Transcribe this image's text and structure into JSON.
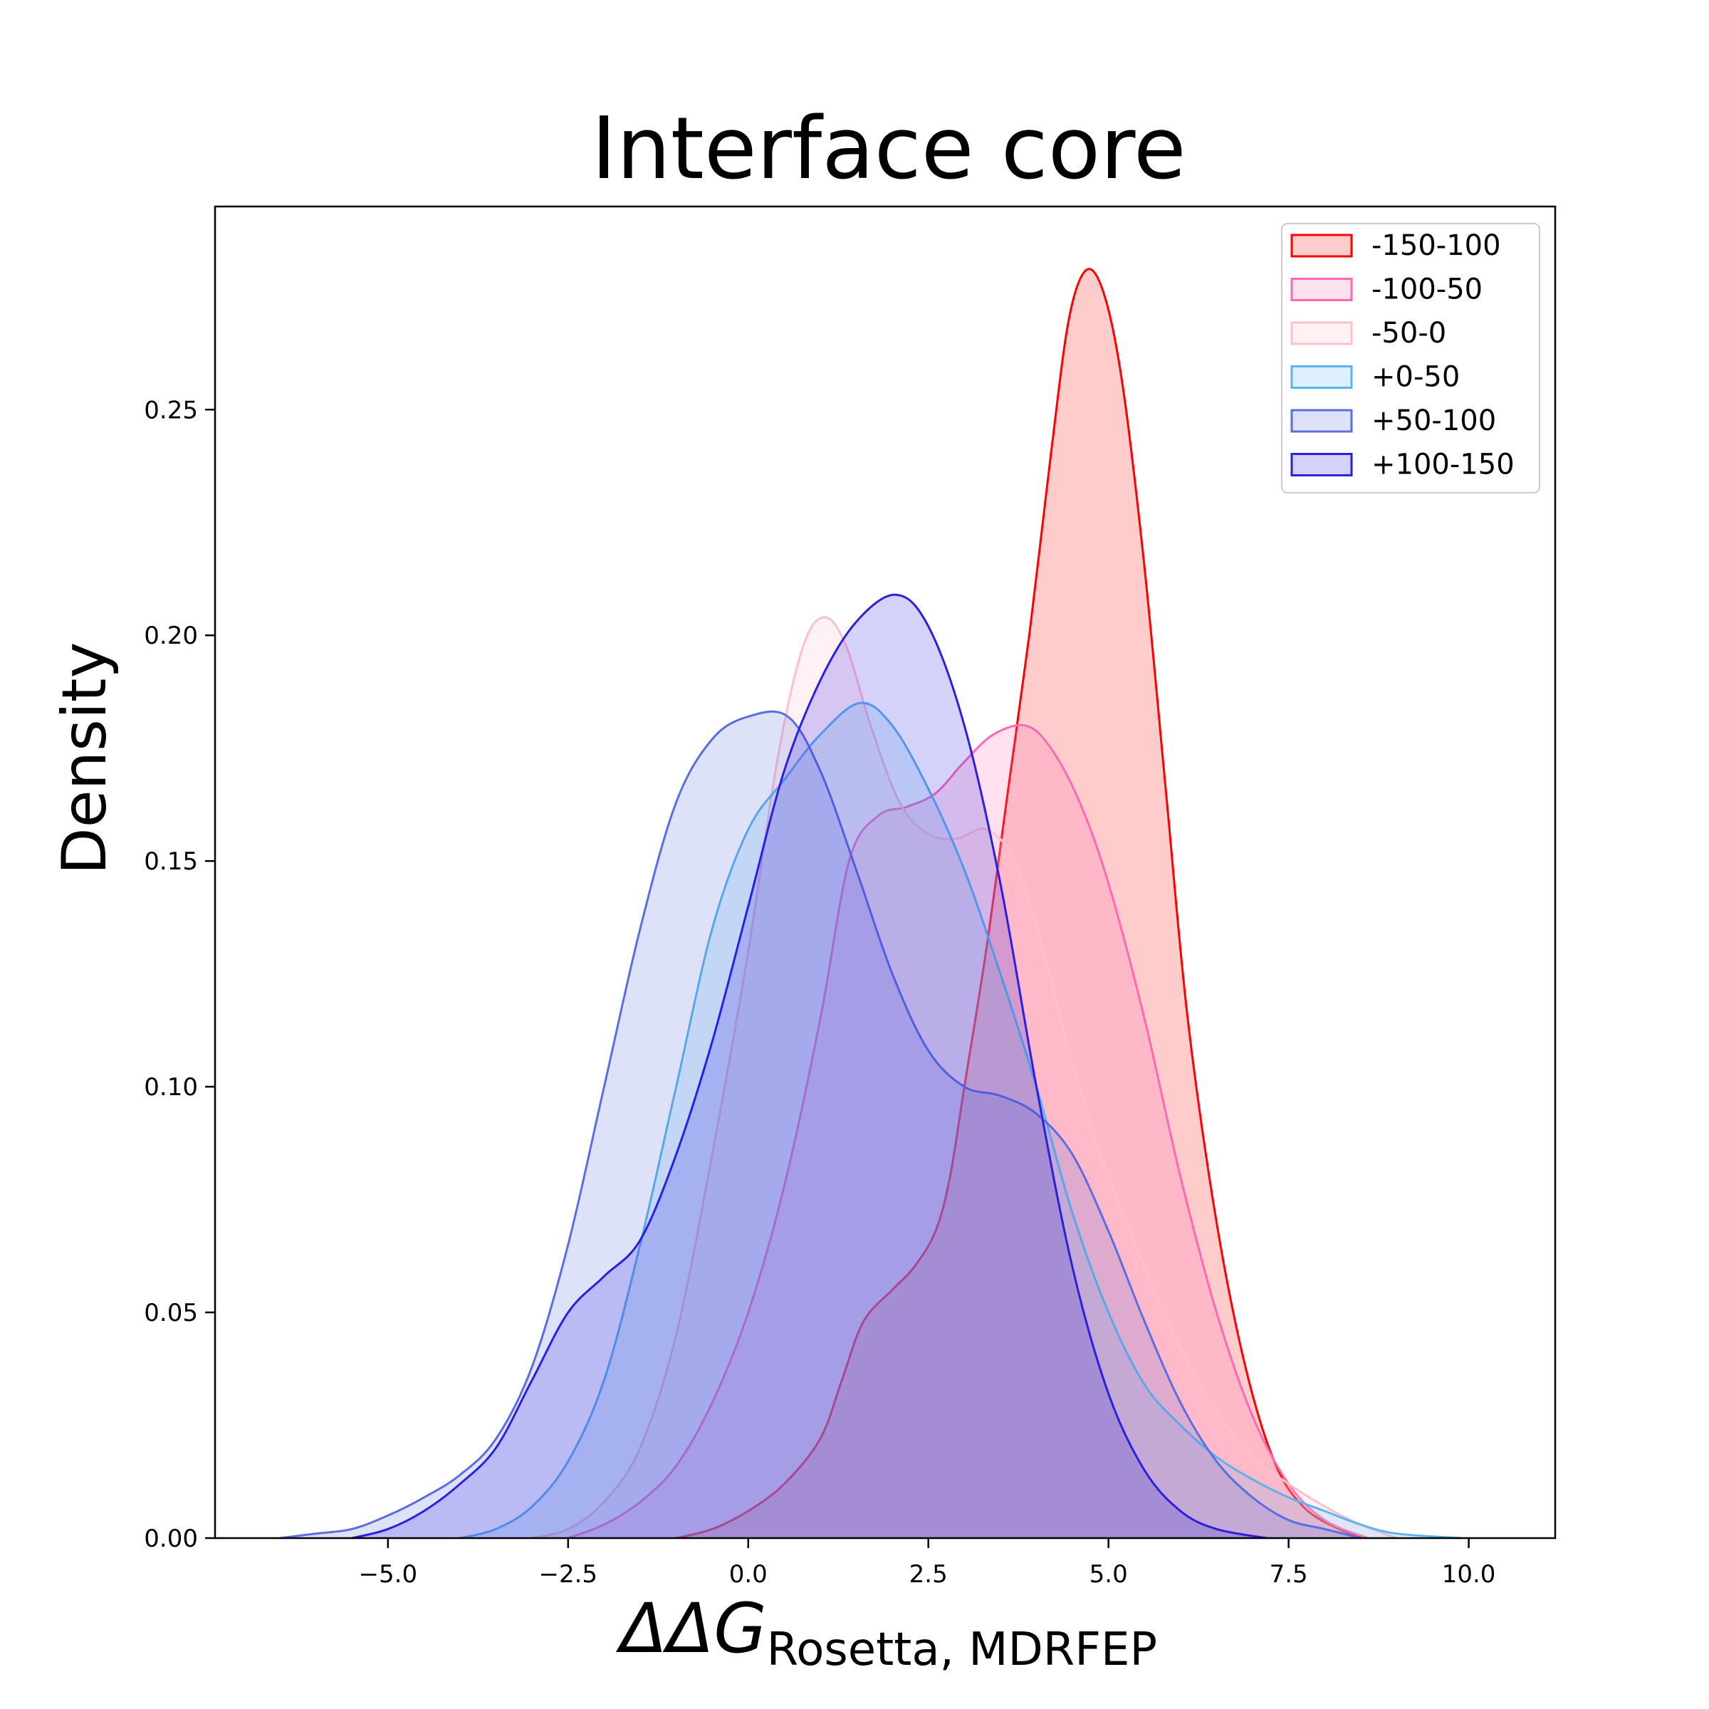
{
  "chart_data": {
    "type": "area",
    "title": "Interface core",
    "ylabel": "Density",
    "xlabel": {
      "main": "ΔΔG",
      "subscript": "Rosetta, MDRFEP"
    },
    "xlim": [
      -7.4,
      11.2
    ],
    "ylim": [
      0,
      0.295
    ],
    "x_ticks": [
      -5.0,
      -2.5,
      0.0,
      2.5,
      5.0,
      7.5,
      10.0
    ],
    "x_tick_labels": [
      "−5.0",
      "−2.5",
      "0.0",
      "2.5",
      "5.0",
      "7.5",
      "10.0"
    ],
    "y_ticks": [
      0.0,
      0.05,
      0.1,
      0.15,
      0.2,
      0.25
    ],
    "y_tick_labels": [
      "0.00",
      "0.05",
      "0.10",
      "0.15",
      "0.20",
      "0.25"
    ],
    "grid": false,
    "legend_position": "top-right",
    "series": [
      {
        "name": "-150-100",
        "color": "#ff0000",
        "fill_opacity": 0.2,
        "points": [
          [
            -1.0,
            0.0
          ],
          [
            -0.5,
            0.002
          ],
          [
            0.0,
            0.006
          ],
          [
            0.5,
            0.012
          ],
          [
            1.0,
            0.022
          ],
          [
            1.3,
            0.035
          ],
          [
            1.6,
            0.048
          ],
          [
            2.0,
            0.055
          ],
          [
            2.3,
            0.06
          ],
          [
            2.6,
            0.068
          ],
          [
            2.8,
            0.08
          ],
          [
            3.0,
            0.1
          ],
          [
            3.3,
            0.13
          ],
          [
            3.6,
            0.165
          ],
          [
            3.9,
            0.2
          ],
          [
            4.2,
            0.24
          ],
          [
            4.45,
            0.27
          ],
          [
            4.7,
            0.281
          ],
          [
            4.95,
            0.275
          ],
          [
            5.2,
            0.255
          ],
          [
            5.5,
            0.215
          ],
          [
            5.8,
            0.165
          ],
          [
            6.1,
            0.115
          ],
          [
            6.5,
            0.07
          ],
          [
            6.9,
            0.038
          ],
          [
            7.3,
            0.017
          ],
          [
            7.7,
            0.007
          ],
          [
            8.2,
            0.002
          ],
          [
            8.6,
            0.0
          ]
        ]
      },
      {
        "name": "-100-50",
        "color": "#ff69b4",
        "fill_opacity": 0.2,
        "points": [
          [
            -2.5,
            0.0
          ],
          [
            -2.0,
            0.003
          ],
          [
            -1.5,
            0.008
          ],
          [
            -1.0,
            0.016
          ],
          [
            -0.5,
            0.03
          ],
          [
            0.0,
            0.05
          ],
          [
            0.5,
            0.078
          ],
          [
            1.0,
            0.115
          ],
          [
            1.4,
            0.15
          ],
          [
            1.8,
            0.16
          ],
          [
            2.2,
            0.162
          ],
          [
            2.6,
            0.165
          ],
          [
            3.0,
            0.172
          ],
          [
            3.4,
            0.178
          ],
          [
            3.85,
            0.18
          ],
          [
            4.2,
            0.175
          ],
          [
            4.6,
            0.163
          ],
          [
            5.0,
            0.145
          ],
          [
            5.5,
            0.115
          ],
          [
            6.0,
            0.08
          ],
          [
            6.5,
            0.05
          ],
          [
            7.0,
            0.027
          ],
          [
            7.5,
            0.012
          ],
          [
            8.0,
            0.004
          ],
          [
            8.6,
            0.0
          ]
        ]
      },
      {
        "name": "-50-0",
        "color": "#ffc0cb",
        "fill_opacity": 0.2,
        "points": [
          [
            -3.0,
            0.0
          ],
          [
            -2.5,
            0.002
          ],
          [
            -2.0,
            0.008
          ],
          [
            -1.5,
            0.02
          ],
          [
            -1.0,
            0.045
          ],
          [
            -0.5,
            0.085
          ],
          [
            0.0,
            0.13
          ],
          [
            0.4,
            0.172
          ],
          [
            0.75,
            0.197
          ],
          [
            1.05,
            0.204
          ],
          [
            1.35,
            0.198
          ],
          [
            1.7,
            0.18
          ],
          [
            2.1,
            0.163
          ],
          [
            2.5,
            0.156
          ],
          [
            2.9,
            0.155
          ],
          [
            3.3,
            0.157
          ],
          [
            3.7,
            0.15
          ],
          [
            4.1,
            0.13
          ],
          [
            4.5,
            0.105
          ],
          [
            5.0,
            0.08
          ],
          [
            5.5,
            0.06
          ],
          [
            6.0,
            0.042
          ],
          [
            6.5,
            0.028
          ],
          [
            7.0,
            0.018
          ],
          [
            7.5,
            0.012
          ],
          [
            8.0,
            0.007
          ],
          [
            8.5,
            0.003
          ],
          [
            9.0,
            0.0
          ]
        ]
      },
      {
        "name": "+0-50",
        "color": "#5ab4ef",
        "fill_opacity": 0.2,
        "points": [
          [
            -4.0,
            0.0
          ],
          [
            -3.5,
            0.002
          ],
          [
            -3.0,
            0.007
          ],
          [
            -2.5,
            0.017
          ],
          [
            -2.0,
            0.035
          ],
          [
            -1.5,
            0.065
          ],
          [
            -1.0,
            0.1
          ],
          [
            -0.5,
            0.135
          ],
          [
            0.0,
            0.157
          ],
          [
            0.5,
            0.168
          ],
          [
            1.0,
            0.178
          ],
          [
            1.55,
            0.185
          ],
          [
            2.0,
            0.18
          ],
          [
            2.5,
            0.166
          ],
          [
            3.0,
            0.148
          ],
          [
            3.5,
            0.125
          ],
          [
            4.0,
            0.1
          ],
          [
            4.5,
            0.072
          ],
          [
            5.0,
            0.05
          ],
          [
            5.5,
            0.034
          ],
          [
            6.0,
            0.025
          ],
          [
            6.5,
            0.018
          ],
          [
            7.0,
            0.013
          ],
          [
            7.5,
            0.009
          ],
          [
            8.0,
            0.006
          ],
          [
            8.5,
            0.003
          ],
          [
            9.0,
            0.001
          ],
          [
            9.9,
            0.0
          ]
        ]
      },
      {
        "name": "+50-100",
        "color": "#5b6ee1",
        "fill_opacity": 0.2,
        "points": [
          [
            -6.5,
            0.0
          ],
          [
            -6.0,
            0.001
          ],
          [
            -5.5,
            0.002
          ],
          [
            -5.0,
            0.005
          ],
          [
            -4.5,
            0.009
          ],
          [
            -4.0,
            0.014
          ],
          [
            -3.5,
            0.022
          ],
          [
            -3.0,
            0.038
          ],
          [
            -2.5,
            0.065
          ],
          [
            -2.0,
            0.1
          ],
          [
            -1.5,
            0.135
          ],
          [
            -1.0,
            0.163
          ],
          [
            -0.5,
            0.177
          ],
          [
            0.0,
            0.182
          ],
          [
            0.55,
            0.182
          ],
          [
            1.0,
            0.17
          ],
          [
            1.5,
            0.148
          ],
          [
            2.0,
            0.125
          ],
          [
            2.5,
            0.108
          ],
          [
            3.0,
            0.1
          ],
          [
            3.5,
            0.098
          ],
          [
            4.0,
            0.094
          ],
          [
            4.5,
            0.085
          ],
          [
            5.0,
            0.068
          ],
          [
            5.5,
            0.048
          ],
          [
            6.0,
            0.03
          ],
          [
            6.5,
            0.017
          ],
          [
            7.0,
            0.009
          ],
          [
            7.5,
            0.004
          ],
          [
            8.0,
            0.002
          ],
          [
            8.5,
            0.0
          ]
        ]
      },
      {
        "name": "+100-150",
        "color": "#2b1fe3",
        "fill_opacity": 0.2,
        "points": [
          [
            -5.5,
            0.0
          ],
          [
            -5.0,
            0.002
          ],
          [
            -4.5,
            0.006
          ],
          [
            -4.0,
            0.012
          ],
          [
            -3.5,
            0.02
          ],
          [
            -3.0,
            0.035
          ],
          [
            -2.5,
            0.05
          ],
          [
            -2.0,
            0.058
          ],
          [
            -1.5,
            0.066
          ],
          [
            -1.0,
            0.085
          ],
          [
            -0.5,
            0.11
          ],
          [
            0.0,
            0.14
          ],
          [
            0.5,
            0.17
          ],
          [
            1.0,
            0.19
          ],
          [
            1.5,
            0.203
          ],
          [
            2.05,
            0.209
          ],
          [
            2.5,
            0.202
          ],
          [
            3.0,
            0.18
          ],
          [
            3.5,
            0.145
          ],
          [
            4.0,
            0.1
          ],
          [
            4.5,
            0.06
          ],
          [
            5.0,
            0.032
          ],
          [
            5.5,
            0.015
          ],
          [
            6.0,
            0.006
          ],
          [
            6.5,
            0.002
          ],
          [
            7.2,
            0.0
          ]
        ]
      }
    ]
  }
}
